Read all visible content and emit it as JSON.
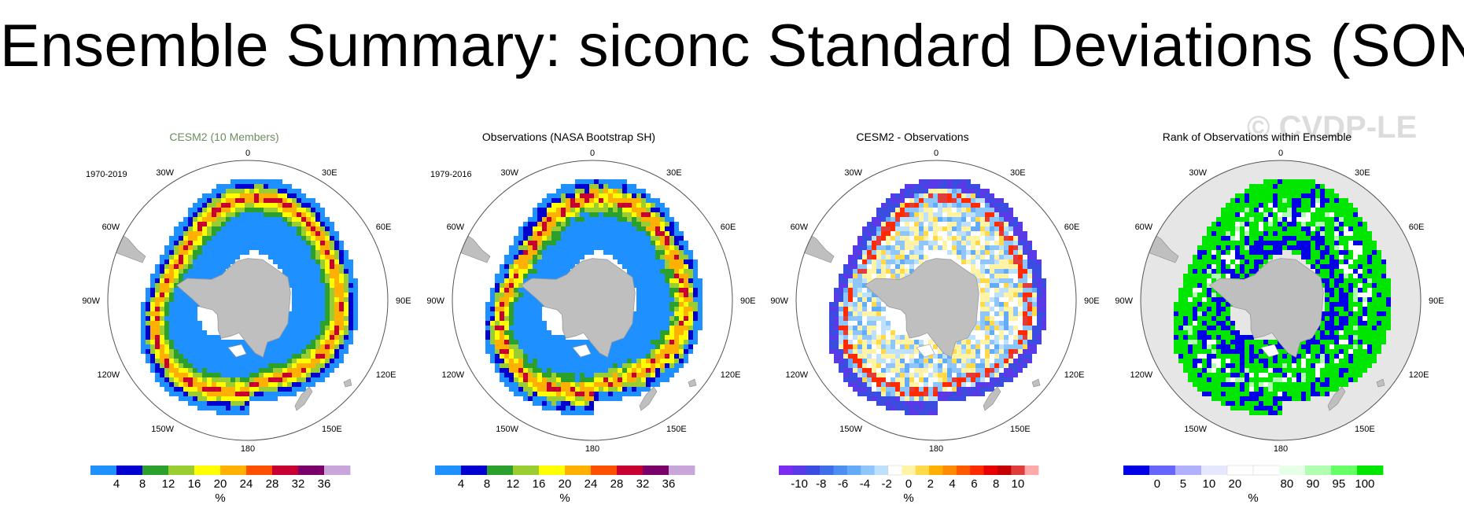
{
  "page": {
    "title": "Ensemble Summary: siconc Standard Deviations (SON)"
  },
  "watermark": "© CVDP-LE",
  "compass_labels": {
    "top": "0",
    "bottom": "180",
    "left": "90W",
    "right": "90E",
    "n30w": "30W",
    "n30e": "30E",
    "n60w": "60W",
    "n60e": "60E",
    "s120w": "120W",
    "s120e": "120E",
    "s150w": "150W",
    "s150e": "150E"
  },
  "panels": [
    {
      "id": "cesm2",
      "title": "CESM2 (10 Members)",
      "title_color": "#6b8e5e",
      "period": "1970-2019",
      "map_style": "stddev_model",
      "colorbar": {
        "colors": [
          "#1e90ff",
          "#0000d0",
          "#2ca02c",
          "#9acd32",
          "#ffff00",
          "#ffb000",
          "#ff5000",
          "#c80032",
          "#7a006a",
          "#c9a6d9"
        ],
        "tick_labels": [
          "4",
          "8",
          "12",
          "16",
          "20",
          "24",
          "28",
          "32",
          "36"
        ],
        "unit": "%"
      }
    },
    {
      "id": "obs",
      "title": "Observations (NASA Bootstrap SH)",
      "title_color": "#000000",
      "period": "1979-2016",
      "map_style": "stddev_obs",
      "colorbar": {
        "colors": [
          "#1e90ff",
          "#0000d0",
          "#2ca02c",
          "#9acd32",
          "#ffff00",
          "#ffb000",
          "#ff5000",
          "#c80032",
          "#7a006a",
          "#c9a6d9"
        ],
        "tick_labels": [
          "4",
          "8",
          "12",
          "16",
          "20",
          "24",
          "28",
          "32",
          "36"
        ],
        "unit": "%"
      }
    },
    {
      "id": "diff",
      "title": "CESM2 - Observations",
      "title_color": "#000000",
      "period": "",
      "map_style": "difference",
      "colorbar": {
        "colors": [
          "#7b2cf0",
          "#5a3ae6",
          "#3b4ce0",
          "#3f6fe8",
          "#4c8ff0",
          "#63aaf7",
          "#8ec6fb",
          "#bde0fd",
          "#ffffff",
          "#fff3a6",
          "#ffd94a",
          "#ffb000",
          "#ff8c00",
          "#ff5a00",
          "#ff2a00",
          "#e60000",
          "#c40000",
          "#e03c3c",
          "#ffaaaa"
        ],
        "tick_labels": [
          "-10",
          "-8",
          "-6",
          "-4",
          "-2",
          "0",
          "2",
          "4",
          "6",
          "8",
          "10"
        ],
        "unit": "%"
      }
    },
    {
      "id": "rank",
      "title": "Rank of Observations within Ensemble",
      "title_color": "#000000",
      "period": "",
      "map_style": "rank",
      "colorbar": {
        "colors": [
          "#0000e6",
          "#6666ff",
          "#b0b0ff",
          "#e6e6ff",
          "#ffffff",
          "#ffffff",
          "#e6ffe6",
          "#b0ffb0",
          "#66ff66",
          "#00e600"
        ],
        "tick_labels": [
          "0",
          "5",
          "10",
          "20",
          "80",
          "90",
          "95",
          "100"
        ],
        "unit": "%"
      }
    }
  ]
}
